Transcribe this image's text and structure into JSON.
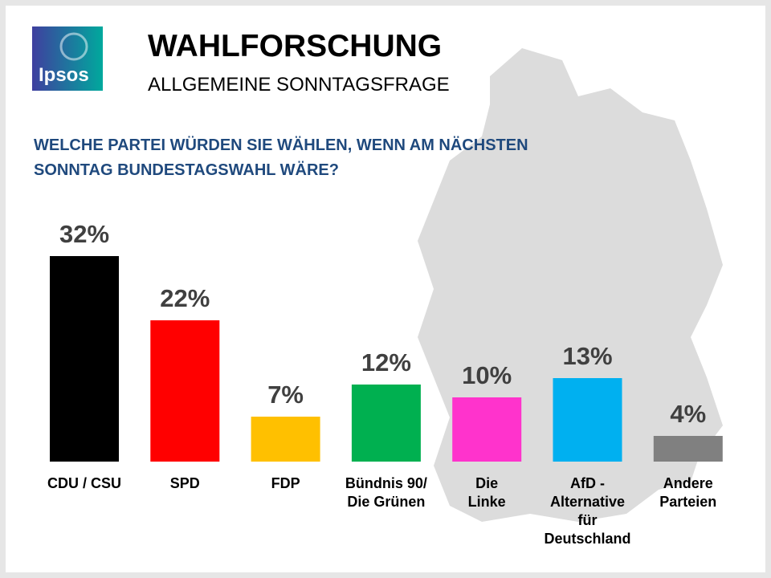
{
  "chart_data": {
    "type": "bar",
    "logo": "Ipsos",
    "title": "WAHLFORSCHUNG",
    "subtitle": "ALLGEMEINE SONNTAGSFRAGE",
    "question": "WELCHE PARTEI WÜRDEN SIE WÄHLEN, WENN AM NÄCHSTEN\nSONNTAG BUNDESTAGSWAHL WÄRE?",
    "categories": [
      "CDU / CSU",
      "SPD",
      "FDP",
      "Bündnis 90/\nDie Grünen",
      "Die\nLinke",
      "AfD -\nAlternative\nfür\nDeutschland",
      "Andere\nParteien"
    ],
    "values": [
      32,
      22,
      7,
      12,
      10,
      13,
      4
    ],
    "value_labels": [
      "32%",
      "22%",
      "7%",
      "12%",
      "10%",
      "13%",
      "4%"
    ],
    "colors": [
      "#000000",
      "#ff0000",
      "#ffc000",
      "#00b050",
      "#ff33cc",
      "#00b0f0",
      "#808080"
    ]
  }
}
